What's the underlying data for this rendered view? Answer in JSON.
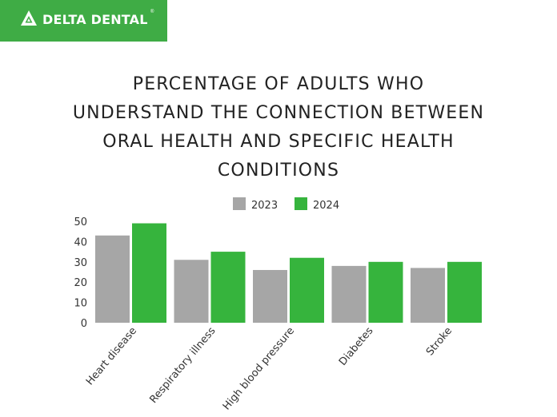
{
  "brand": {
    "name": "DELTA DENTAL",
    "registered": "®",
    "color": "#3fac45"
  },
  "chart_data": {
    "type": "bar",
    "title": "PERCENTAGE OF ADULTS WHO UNDERSTAND THE CONNECTION BETWEEN ORAL HEALTH AND SPECIFIC HEALTH CONDITIONS",
    "title_lines": [
      "PERCENTAGE OF ADULTS WHO",
      "UNDERSTAND THE CONNECTION BETWEEN",
      "ORAL HEALTH AND SPECIFIC HEALTH",
      "CONDITIONS"
    ],
    "categories": [
      "Heart disease",
      "Respiratory illness",
      "High blood pressure",
      "Diabetes",
      "Stroke"
    ],
    "series": [
      {
        "name": "2023",
        "color": "#a6a6a6",
        "values": [
          43,
          31,
          26,
          28,
          27
        ]
      },
      {
        "name": "2024",
        "color": "#36b43d",
        "values": [
          49,
          35,
          32,
          30,
          30
        ]
      }
    ],
    "yticks": [
      0,
      10,
      20,
      30,
      40,
      50
    ],
    "ylim": [
      0,
      50
    ],
    "xlabel": "",
    "ylabel": "",
    "grid": false,
    "legend_position": "top-center"
  }
}
